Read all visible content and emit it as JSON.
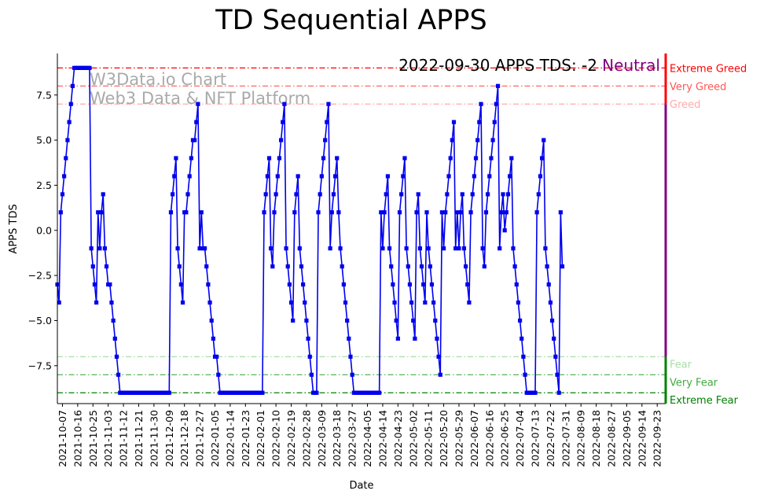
{
  "chart_data": {
    "type": "line",
    "title": "TD Sequential APPS",
    "xlabel": "Date",
    "ylabel": "APPS TDS",
    "ylim": [
      -9.6,
      9.8
    ],
    "yticks": [
      7.5,
      5.0,
      2.5,
      0.0,
      -2.5,
      -5.0,
      -7.5
    ],
    "ytick_labels": [
      "7.5",
      "5.0",
      "2.5",
      "0.0",
      "−2.5",
      "−5.0",
      "−7.5"
    ],
    "x_range_days": [
      0,
      359
    ],
    "xticks": [
      {
        "day": 3,
        "label": "2021-10-07"
      },
      {
        "day": 12,
        "label": "2021-10-16"
      },
      {
        "day": 21,
        "label": "2021-10-25"
      },
      {
        "day": 30,
        "label": "2021-11-03"
      },
      {
        "day": 39,
        "label": "2021-11-12"
      },
      {
        "day": 48,
        "label": "2021-11-21"
      },
      {
        "day": 57,
        "label": "2021-11-30"
      },
      {
        "day": 66,
        "label": "2021-12-09"
      },
      {
        "day": 75,
        "label": "2021-12-18"
      },
      {
        "day": 84,
        "label": "2021-12-27"
      },
      {
        "day": 93,
        "label": "2022-01-05"
      },
      {
        "day": 102,
        "label": "2022-01-14"
      },
      {
        "day": 111,
        "label": "2022-01-23"
      },
      {
        "day": 120,
        "label": "2022-02-01"
      },
      {
        "day": 129,
        "label": "2022-02-10"
      },
      {
        "day": 138,
        "label": "2022-02-19"
      },
      {
        "day": 147,
        "label": "2022-02-28"
      },
      {
        "day": 156,
        "label": "2022-03-09"
      },
      {
        "day": 165,
        "label": "2022-03-18"
      },
      {
        "day": 174,
        "label": "2022-03-27"
      },
      {
        "day": 183,
        "label": "2022-04-05"
      },
      {
        "day": 192,
        "label": "2022-04-14"
      },
      {
        "day": 201,
        "label": "2022-04-23"
      },
      {
        "day": 210,
        "label": "2022-05-02"
      },
      {
        "day": 219,
        "label": "2022-05-11"
      },
      {
        "day": 228,
        "label": "2022-05-20"
      },
      {
        "day": 237,
        "label": "2022-05-29"
      },
      {
        "day": 246,
        "label": "2022-06-07"
      },
      {
        "day": 255,
        "label": "2022-06-16"
      },
      {
        "day": 264,
        "label": "2022-06-25"
      },
      {
        "day": 273,
        "label": "2022-07-04"
      },
      {
        "day": 282,
        "label": "2022-07-13"
      },
      {
        "day": 291,
        "label": "2022-07-22"
      },
      {
        "day": 300,
        "label": "2022-07-31"
      },
      {
        "day": 309,
        "label": "2022-08-09"
      },
      {
        "day": 318,
        "label": "2022-08-18"
      },
      {
        "day": 327,
        "label": "2022-08-27"
      },
      {
        "day": 336,
        "label": "2022-09-05"
      },
      {
        "day": 345,
        "label": "2022-09-14"
      },
      {
        "day": 354,
        "label": "2022-09-23"
      }
    ],
    "series": [
      {
        "name": "APPS TDS",
        "color": "#0000ee",
        "values": [
          -3,
          -4,
          1,
          2,
          3,
          4,
          5,
          6,
          7,
          8,
          9,
          9,
          9,
          9,
          9,
          9,
          9,
          9,
          9,
          9,
          -1,
          -2,
          -3,
          -4,
          1,
          -1,
          1,
          2,
          -1,
          -2,
          -3,
          -3,
          -4,
          -5,
          -6,
          -7,
          -8,
          -9,
          -9,
          -9,
          -9,
          -9,
          -9,
          -9,
          -9,
          -9,
          -9,
          -9,
          -9,
          -9,
          -9,
          -9,
          -9,
          -9,
          -9,
          -9,
          -9,
          -9,
          -9,
          -9,
          -9,
          -9,
          -9,
          -9,
          -9,
          -9,
          -9,
          1,
          2,
          3,
          4,
          -1,
          -2,
          -3,
          -4,
          1,
          1,
          2,
          3,
          4,
          5,
          5,
          6,
          7,
          -1,
          1,
          -1,
          -1,
          -2,
          -3,
          -4,
          -5,
          -6,
          -7,
          -7,
          -8,
          -9,
          -9,
          -9,
          -9,
          -9,
          -9,
          -9,
          -9,
          -9,
          -9,
          -9,
          -9,
          -9,
          -9,
          -9,
          -9,
          -9,
          -9,
          -9,
          -9,
          -9,
          -9,
          -9,
          -9,
          -9,
          -9,
          1,
          2,
          3,
          4,
          -1,
          -2,
          1,
          2,
          3,
          4,
          5,
          6,
          7,
          -1,
          -2,
          -3,
          -4,
          -5,
          1,
          2,
          3,
          -1,
          -2,
          -3,
          -4,
          -5,
          -6,
          -7,
          -8,
          -9,
          -9,
          -9,
          1,
          2,
          3,
          4,
          5,
          6,
          7,
          -1,
          1,
          2,
          3,
          4,
          1,
          -1,
          -2,
          -3,
          -4,
          -5,
          -6,
          -7,
          -8,
          -9,
          -9,
          -9,
          -9,
          -9,
          -9,
          -9,
          -9,
          -9,
          -9,
          -9,
          -9,
          -9,
          -9,
          -9,
          -9,
          1,
          -1,
          1,
          2,
          3,
          -1,
          -2,
          -3,
          -4,
          -5,
          -6,
          1,
          2,
          3,
          4,
          -1,
          -2,
          -3,
          -4,
          -5,
          -6,
          1,
          2,
          -1,
          -2,
          -3,
          -4,
          1,
          -1,
          -2,
          -3,
          -4,
          -5,
          -6,
          -7,
          -8,
          1,
          -1,
          1,
          2,
          3,
          4,
          5,
          6,
          -1,
          1,
          -1,
          1,
          2,
          -1,
          -2,
          -3,
          -4,
          1,
          2,
          3,
          4,
          5,
          6,
          7,
          -1,
          -2,
          1,
          2,
          3,
          4,
          5,
          6,
          7,
          8,
          -1,
          1,
          2,
          0,
          1,
          2,
          3,
          4,
          -1,
          -2,
          -3,
          -4,
          -5,
          -6,
          -7,
          -8,
          -9,
          -9,
          -9,
          -9,
          -9,
          -9,
          1,
          2,
          3,
          4,
          5,
          -1,
          -2,
          -3,
          -4,
          -5,
          -6,
          -7,
          -8,
          -9,
          1,
          -2
        ]
      }
    ],
    "zones": [
      {
        "label": "Extreme Greed",
        "value": 9,
        "color": "#ff0000"
      },
      {
        "label": "Very Greed",
        "value": 8,
        "color": "#ff5555"
      },
      {
        "label": "Greed",
        "value": 7,
        "color": "#ffaaaa"
      },
      {
        "label": "Fear",
        "value": -7,
        "color": "#aaddaa"
      },
      {
        "label": "Very Fear",
        "value": -8,
        "color": "#44aa44"
      },
      {
        "label": "Extreme Fear",
        "value": -9,
        "color": "#008000"
      }
    ],
    "annotation": {
      "text": "2022-09-30 APPS TDS: -2",
      "status": "Neutral",
      "status_color": "#800080"
    },
    "watermark": [
      "W3Data.io Chart",
      "Web3 Data & NFT Platform"
    ]
  }
}
